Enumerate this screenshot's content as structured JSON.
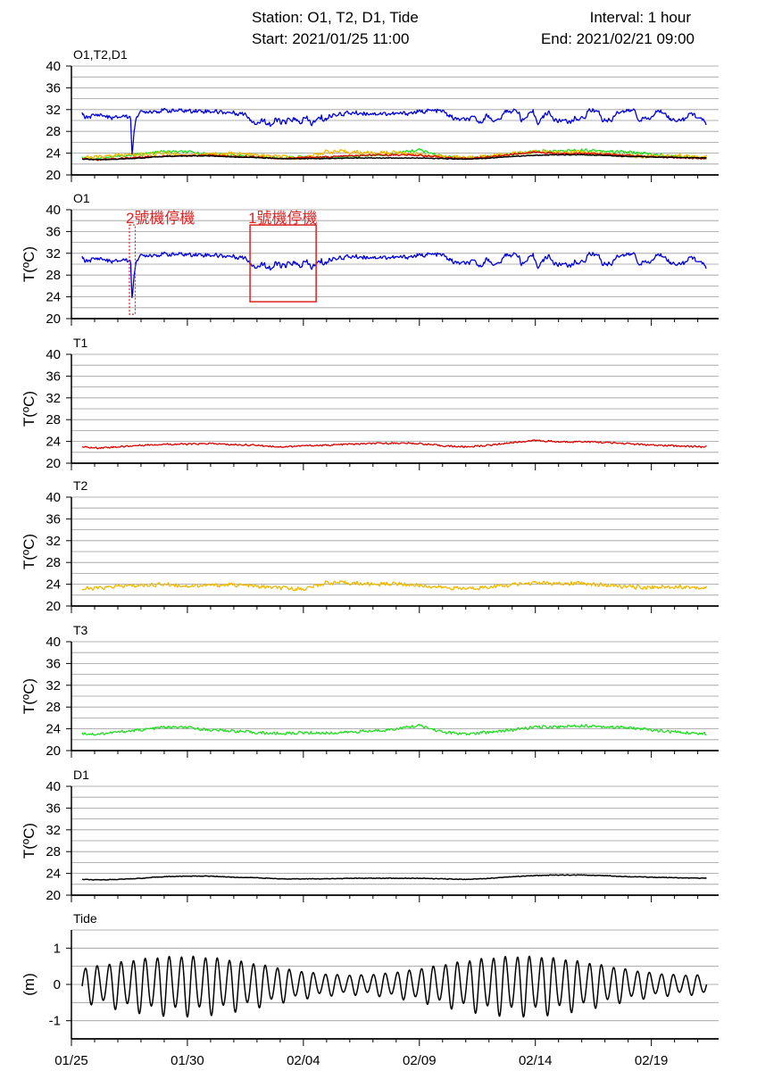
{
  "header": {
    "station": "Station: O1, T2, D1, Tide",
    "start": "Start: 2021/01/25 11:00",
    "interval": "Interval: 1 hour",
    "end": "End: 2021/02/21 09:00"
  },
  "colors": {
    "O1": "#0000dd",
    "T1": "#dd0000",
    "T2": "#f2b800",
    "T3": "#22dd22",
    "D1": "#000000",
    "Tide": "#000000",
    "annotation": "#dd2222",
    "grid": "#9a9a9a"
  },
  "annotations": {
    "machine2_stop": "2號機停機",
    "machine1_stop": "1號機停機"
  },
  "x_axis": {
    "start_day": 25.46,
    "end_day": 52.38,
    "tick_days": [
      25,
      30,
      35,
      40,
      45,
      50
    ],
    "tick_labels": [
      "01/25",
      "01/30",
      "02/04",
      "02/09",
      "02/14",
      "02/19"
    ]
  },
  "chart_data": [
    {
      "id": "combined",
      "type": "line",
      "panel_label": "O1,T2,D1",
      "ylabel": "",
      "ylim": [
        20,
        40
      ],
      "yticks": [
        20,
        24,
        28,
        32,
        36,
        40
      ],
      "series": [
        "T3",
        "T2",
        "T1",
        "D1",
        "O1"
      ]
    },
    {
      "id": "O1",
      "type": "line",
      "panel_label": "O1",
      "ylabel": "T(ºC)",
      "ylim": [
        20,
        40
      ],
      "yticks": [
        20,
        24,
        28,
        32,
        36,
        40
      ],
      "series": [
        "O1"
      ],
      "x": [
        25.46,
        25.6,
        26.2,
        26.8,
        27.3,
        27.55,
        27.62,
        27.7,
        27.78,
        27.95,
        28.3,
        29,
        30,
        31,
        32,
        32.5,
        32.8,
        33,
        33.3,
        33.6,
        33.9,
        34.2,
        34.5,
        34.8,
        35.1,
        35.4,
        35.7,
        36,
        36.3,
        36.6,
        37,
        38,
        39,
        39.6,
        40.1,
        40.3,
        41,
        41.5,
        42,
        42.4,
        42.6,
        42.9,
        43.3,
        43.6,
        43.7,
        44.3,
        44.4,
        44.9,
        45.1,
        45.6,
        45.8,
        46.1,
        46.3,
        46.5,
        46.7,
        47.1,
        47.3,
        47.7,
        47.9,
        48.3,
        48.5,
        49,
        49.3,
        49.4,
        50,
        50.2,
        50.6,
        50.8,
        51.5,
        51.7,
        52.38
      ],
      "y": [
        31.2,
        30.6,
        31.1,
        30.4,
        30.9,
        30.6,
        23.5,
        27.5,
        30.7,
        31.4,
        31.7,
        31.8,
        31.8,
        31.7,
        31.4,
        31.2,
        30.1,
        29.4,
        30.2,
        29.2,
        30.1,
        29.4,
        30.4,
        29.6,
        30.3,
        29.4,
        30.4,
        30.3,
        31.1,
        31.2,
        31.4,
        31.3,
        31.2,
        31.4,
        31.6,
        31.8,
        31.7,
        30.3,
        30.1,
        30.5,
        29.5,
        30.9,
        29.8,
        30.8,
        31.8,
        31.7,
        29.8,
        31.6,
        29.6,
        31.7,
        30.0,
        29.9,
        30.3,
        29.4,
        30.4,
        30.3,
        31.9,
        31.9,
        30.0,
        30.1,
        31.6,
        31.7,
        31.9,
        30.2,
        30.4,
        31.6,
        31.6,
        30.1,
        30.2,
        31.5,
        29.5
      ]
    },
    {
      "id": "T1",
      "type": "line",
      "panel_label": "T1",
      "ylabel": "T(ºC)",
      "ylim": [
        20,
        40
      ],
      "yticks": [
        20,
        24,
        28,
        32,
        36,
        40
      ],
      "series": [
        "T1"
      ],
      "x": [
        25.46,
        26,
        27,
        28,
        29,
        30,
        31,
        32,
        33,
        34,
        35,
        36,
        37,
        38,
        39,
        40,
        41,
        42,
        43,
        44,
        45,
        46,
        47,
        48,
        49,
        50,
        51,
        52.38
      ],
      "y": [
        23.0,
        22.8,
        23.0,
        23.3,
        23.5,
        23.5,
        23.6,
        23.4,
        23.3,
        23.0,
        23.2,
        23.3,
        23.5,
        23.6,
        23.7,
        23.6,
        23.2,
        23.0,
        23.3,
        23.8,
        24.2,
        23.9,
        24.0,
        23.8,
        23.6,
        23.3,
        23.2,
        23.0
      ]
    },
    {
      "id": "T2",
      "type": "line",
      "panel_label": "T2",
      "ylabel": "T(ºC)",
      "ylim": [
        20,
        40
      ],
      "yticks": [
        20,
        24,
        28,
        32,
        36,
        40
      ],
      "series": [
        "T2"
      ],
      "x": [
        25.46,
        26,
        27,
        28,
        29,
        30,
        31,
        32,
        33,
        34,
        35,
        36,
        37,
        38,
        39,
        40,
        41,
        42,
        43,
        44,
        45,
        46,
        47,
        48,
        49,
        50,
        51,
        52.38
      ],
      "y": [
        23.1,
        23.2,
        23.6,
        23.8,
        24.0,
        23.7,
        23.8,
        23.9,
        23.6,
        23.3,
        23.1,
        24.3,
        24.2,
        24.0,
        24.1,
        23.8,
        23.4,
        23.2,
        23.5,
        23.9,
        24.3,
        24.0,
        24.2,
        23.8,
        23.5,
        23.4,
        23.6,
        23.3
      ]
    },
    {
      "id": "T3",
      "type": "line",
      "panel_label": "T3",
      "ylabel": "T(ºC)",
      "ylim": [
        20,
        40
      ],
      "yticks": [
        20,
        24,
        28,
        32,
        36,
        40
      ],
      "series": [
        "T3"
      ],
      "x": [
        25.46,
        26,
        27,
        28,
        29,
        30,
        31,
        32,
        33,
        34,
        35,
        36,
        37,
        38,
        39,
        40,
        41,
        42,
        43,
        44,
        45,
        46,
        47,
        48,
        49,
        50,
        51,
        52.38
      ],
      "y": [
        23.2,
        23.0,
        23.4,
        23.8,
        24.3,
        24.2,
        23.8,
        23.6,
        23.3,
        23.1,
        23.3,
        23.2,
        23.4,
        23.6,
        24.0,
        24.6,
        23.4,
        23.0,
        23.4,
        23.8,
        24.3,
        24.4,
        24.6,
        24.4,
        24.2,
        23.8,
        23.4,
        23.1
      ]
    },
    {
      "id": "D1",
      "type": "line",
      "panel_label": "D1",
      "ylabel": "T(ºC)",
      "ylim": [
        20,
        40
      ],
      "yticks": [
        20,
        24,
        28,
        32,
        36,
        40
      ],
      "series": [
        "D1"
      ],
      "x": [
        25.46,
        26,
        27,
        28,
        29,
        30,
        31,
        32,
        33,
        34,
        35,
        36,
        37,
        38,
        39,
        40,
        41,
        42,
        43,
        44,
        45,
        46,
        47,
        48,
        49,
        50,
        51,
        52.38
      ],
      "y": [
        22.9,
        22.8,
        22.9,
        23.1,
        23.4,
        23.5,
        23.5,
        23.3,
        23.2,
        23.0,
        23.0,
        23.0,
        23.1,
        23.1,
        23.1,
        23.1,
        23.0,
        22.9,
        23.1,
        23.4,
        23.6,
        23.7,
        23.7,
        23.6,
        23.4,
        23.3,
        23.2,
        23.1
      ]
    },
    {
      "id": "Tide",
      "type": "line",
      "panel_label": "Tide",
      "ylabel": "(m)",
      "ylim": [
        -1.5,
        1.5
      ],
      "yticks": [
        -1,
        0,
        1
      ],
      "series": [
        "Tide"
      ],
      "model": "semi-diurnal sinusoid, period 0.5175 d, amplitude envelope 0.9 m at spring tides, 0.3 m at neap tides"
    }
  ]
}
